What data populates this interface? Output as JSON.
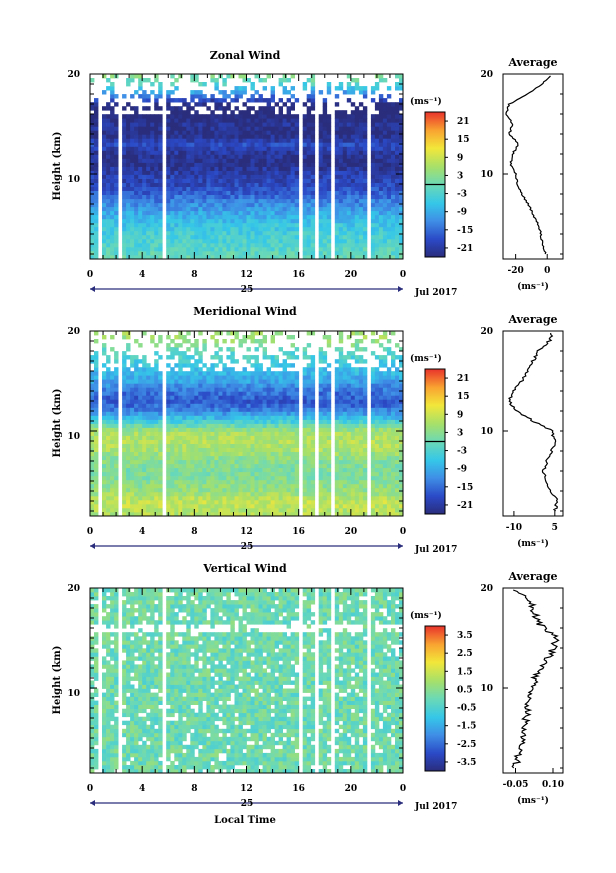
{
  "figure": {
    "xlabel": "Local Time",
    "date_label": "Jul 2017",
    "day_label": "25",
    "ylabel": "Height (km)",
    "unit": "(ms⁻¹)",
    "avg_title": "Average"
  },
  "chart_data": [
    {
      "type": "heatmap",
      "title": "Zonal Wind",
      "ylabel": "Height (km)",
      "xlabel": "",
      "x_ticks": [
        "0",
        "4",
        "8",
        "12",
        "16",
        "20",
        "0"
      ],
      "y_ticks": [
        "10",
        "20"
      ],
      "xlim": [
        0,
        24
      ],
      "ylim": [
        1.5,
        20
      ],
      "colorbar": {
        "unit": "(ms⁻¹)",
        "ticks": [
          "21",
          "15",
          "9",
          "3",
          "-3",
          "-9",
          "-15",
          "-21"
        ],
        "range": [
          -24,
          24
        ],
        "zero_line": 0
      },
      "gaps_hours": [
        [
          0.7,
          0.95
        ],
        [
          2.2,
          2.35
        ],
        [
          5.4,
          5.75
        ],
        [
          16.1,
          16.45
        ],
        [
          17.2,
          17.4
        ],
        [
          18.5,
          18.7
        ],
        [
          21.3,
          21.5
        ]
      ],
      "profile": {
        "title": "Average",
        "x_ticks": [
          "-20",
          "0"
        ],
        "xlim": [
          -28,
          10
        ],
        "xlabel": "(ms⁻¹)",
        "heights_km": [
          2,
          3,
          4,
          5,
          6,
          7,
          8,
          9,
          10,
          11,
          12,
          13,
          14,
          15,
          16,
          17,
          18,
          19,
          19.8
        ],
        "values": [
          -1,
          -3,
          -4,
          -6,
          -9,
          -12,
          -16,
          -19,
          -20,
          -23,
          -22,
          -18,
          -24,
          -22,
          -26,
          -24,
          -12,
          -3,
          2
        ]
      }
    },
    {
      "type": "heatmap",
      "title": "Meridional Wind",
      "ylabel": "Height (km)",
      "xlabel": "",
      "x_ticks": [
        "0",
        "4",
        "8",
        "12",
        "16",
        "20",
        "0"
      ],
      "y_ticks": [
        "10",
        "20"
      ],
      "xlim": [
        0,
        24
      ],
      "ylim": [
        1.5,
        20
      ],
      "colorbar": {
        "unit": "(ms⁻¹)",
        "ticks": [
          "21",
          "15",
          "9",
          "3",
          "-3",
          "-9",
          "-15",
          "-21"
        ],
        "range": [
          -24,
          24
        ],
        "zero_line": 0
      },
      "gaps_hours": [
        [
          0.7,
          0.95
        ],
        [
          2.2,
          2.35
        ],
        [
          5.4,
          5.75
        ],
        [
          16.1,
          16.45
        ],
        [
          17.2,
          17.4
        ],
        [
          18.5,
          18.7
        ],
        [
          21.3,
          21.5
        ]
      ],
      "profile": {
        "title": "Average",
        "x_ticks": [
          "-10",
          "5"
        ],
        "xlim": [
          -14,
          8
        ],
        "xlabel": "(ms⁻¹)",
        "heights_km": [
          2,
          3,
          4,
          5,
          6,
          7,
          8,
          9,
          10,
          11,
          12,
          13,
          14,
          15,
          16,
          17,
          18,
          19,
          19.8
        ],
        "values": [
          5,
          6,
          3,
          2,
          1,
          2,
          4,
          5,
          4,
          -3,
          -9,
          -12,
          -10,
          -7,
          -5,
          -3,
          -1,
          3,
          4
        ]
      }
    },
    {
      "type": "heatmap",
      "title": "Vertical Wind",
      "ylabel": "Height (km)",
      "xlabel": "Local Time",
      "x_ticks": [
        "0",
        "4",
        "8",
        "12",
        "16",
        "20",
        "0"
      ],
      "y_ticks": [
        "10",
        "20"
      ],
      "xlim": [
        0,
        24
      ],
      "ylim": [
        1.5,
        20
      ],
      "colorbar": {
        "unit": "(ms⁻¹)",
        "ticks": [
          "3.5",
          "2.5",
          "1.5",
          "0.5",
          "-0.5",
          "-1.5",
          "-2.5",
          "-3.5"
        ],
        "range": [
          -4,
          4
        ],
        "zero_line": null
      },
      "gaps_hours": [
        [
          0.7,
          0.95
        ],
        [
          2.2,
          2.35
        ],
        [
          5.4,
          5.75
        ],
        [
          16.1,
          16.45
        ],
        [
          17.2,
          17.4
        ],
        [
          18.5,
          18.7
        ],
        [
          21.3,
          21.5
        ]
      ],
      "profile": {
        "title": "Average",
        "x_ticks": [
          "-0.05",
          "0.10"
        ],
        "xlim": [
          -0.1,
          0.14
        ],
        "xlabel": "(ms⁻¹)",
        "heights_km": [
          2,
          3,
          4,
          5,
          6,
          7,
          8,
          9,
          10,
          11,
          12,
          13,
          14,
          15,
          16,
          17,
          18,
          19,
          19.8
        ],
        "values": [
          -0.05,
          -0.04,
          -0.03,
          -0.02,
          -0.01,
          -0.01,
          0.0,
          0.01,
          0.02,
          0.03,
          0.05,
          0.08,
          0.1,
          0.12,
          0.06,
          0.03,
          0.02,
          0.0,
          -0.06
        ]
      }
    }
  ]
}
